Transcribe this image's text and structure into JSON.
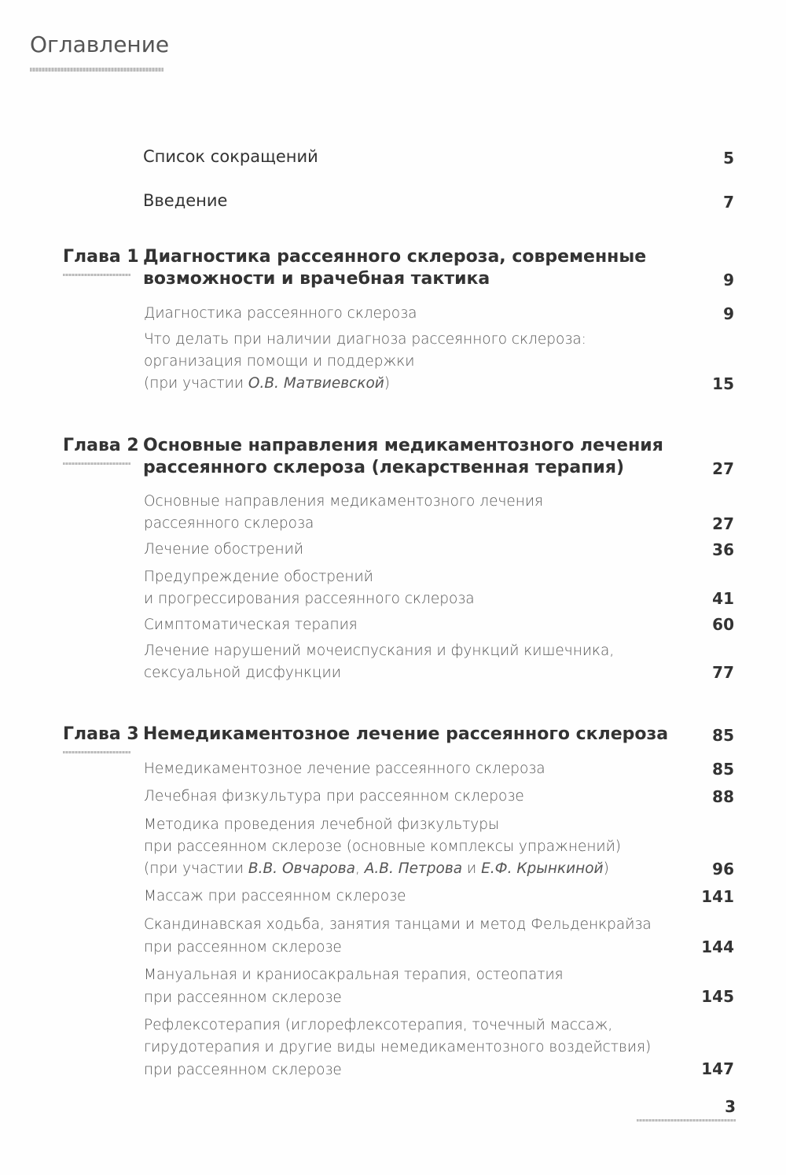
{
  "title": "Оглавление",
  "front": [
    {
      "label": "Список сокращений",
      "page": "5"
    },
    {
      "label": "Введение",
      "page": "7"
    }
  ],
  "chapters": [
    {
      "label": "Глава 1",
      "title_lines": [
        "Диагностика рассеянного склероза, современные",
        "возможности и врачебная тактика"
      ],
      "page": "9",
      "sections": [
        {
          "lines": [
            "Диагностика рассеянного склероза"
          ],
          "page": "9"
        },
        {
          "lines": [
            "Что делать при наличии диагноза рассеянного склероза:",
            "организация помощи и поддержки",
            "(при участии "
          ],
          "italic": "О.В. Матвиевской",
          "tail": ")",
          "page": "15"
        }
      ]
    },
    {
      "label": "Глава 2",
      "title_lines": [
        "Основные направления медикаментозного лечения",
        "рассеянного склероза (лекарственная терапия)"
      ],
      "page": "27",
      "sections": [
        {
          "lines": [
            "Основные направления медикаментозного лечения",
            "рассеянного склероза"
          ],
          "page": "27"
        },
        {
          "lines": [
            "Лечение обострений"
          ],
          "page": "36"
        },
        {
          "lines": [
            "Предупреждение обострений",
            "и прогрессирования рассеянного склероза"
          ],
          "page": "41"
        },
        {
          "lines": [
            "Симптоматическая терапия"
          ],
          "page": "60"
        },
        {
          "lines": [
            "Лечение нарушений мочеиспускания и функций кишечника,",
            "сексуальной дисфункции"
          ],
          "page": "77"
        }
      ]
    },
    {
      "label": "Глава 3",
      "title_lines": [
        "Немедикаментозное лечение рассеянного склероза"
      ],
      "page": "85",
      "sections": [
        {
          "lines": [
            "Немедикаментозное лечение рассеянного склероза"
          ],
          "page": "85"
        },
        {
          "lines": [
            "Лечебная физкультура при рассеянном склерозе"
          ],
          "page": "88"
        },
        {
          "lines": [
            "Методика проведения лечебной физкультуры",
            "при рассеянном склерозе (основные комплексы упражнений)",
            "(при участии "
          ],
          "italic_parts": [
            "В.В. Овчарова",
            ", ",
            "А.В. Петрова",
            " и ",
            "Е.Ф. Крынкиной",
            ")"
          ],
          "page": "96"
        },
        {
          "lines": [
            "Массаж при рассеянном склерозе"
          ],
          "page": "141"
        },
        {
          "lines": [
            "Скандинавская ходьба, занятия танцами и метод Фельденкрайза",
            "при рассеянном склерозе"
          ],
          "page": "144"
        },
        {
          "lines": [
            "Мануальная и краниосакральная терапия, остеопатия",
            "при рассеянном склерозе"
          ],
          "page": "145"
        },
        {
          "lines": [
            "Рефлексотерапия (иглорефлексотерапия, точечный массаж,",
            "гирудотерапия и другие виды немедикаментозного воздействия)",
            "при рассеянном склерозе"
          ],
          "page": "147"
        }
      ]
    }
  ],
  "page_number": "3"
}
